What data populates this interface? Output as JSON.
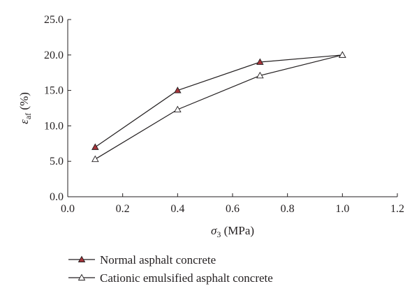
{
  "chart_data": {
    "type": "line",
    "x": [
      0.1,
      0.4,
      0.7,
      1.0
    ],
    "xlabel": "σ3 (MPa)",
    "xlabel_parts": {
      "symbol": "σ",
      "sub": "3",
      "unit": " (MPa)"
    },
    "ylabel": "εaf (%)",
    "ylabel_parts": {
      "symbol": "ε",
      "sub": "af",
      "unit": " (%)"
    },
    "xlim": [
      0.0,
      1.2
    ],
    "ylim": [
      0.0,
      25.0
    ],
    "x_ticks": [
      "0.0",
      "0.2",
      "0.4",
      "0.6",
      "0.8",
      "1.0",
      "1.2"
    ],
    "y_ticks": [
      "0.0",
      "5.0",
      "10.0",
      "15.0",
      "20.0",
      "25.0"
    ],
    "grid": false,
    "legend_position": "bottom-left",
    "series": [
      {
        "name": "Normal asphalt concrete",
        "marker": "filled-triangle",
        "marker_color": "#a6343a",
        "values": [
          7.0,
          15.0,
          19.0,
          20.0
        ]
      },
      {
        "name": "Cationic emulsified asphalt concrete",
        "marker": "open-triangle",
        "marker_color": "#ffffff",
        "values": [
          5.3,
          12.3,
          17.1,
          20.0
        ]
      }
    ]
  }
}
